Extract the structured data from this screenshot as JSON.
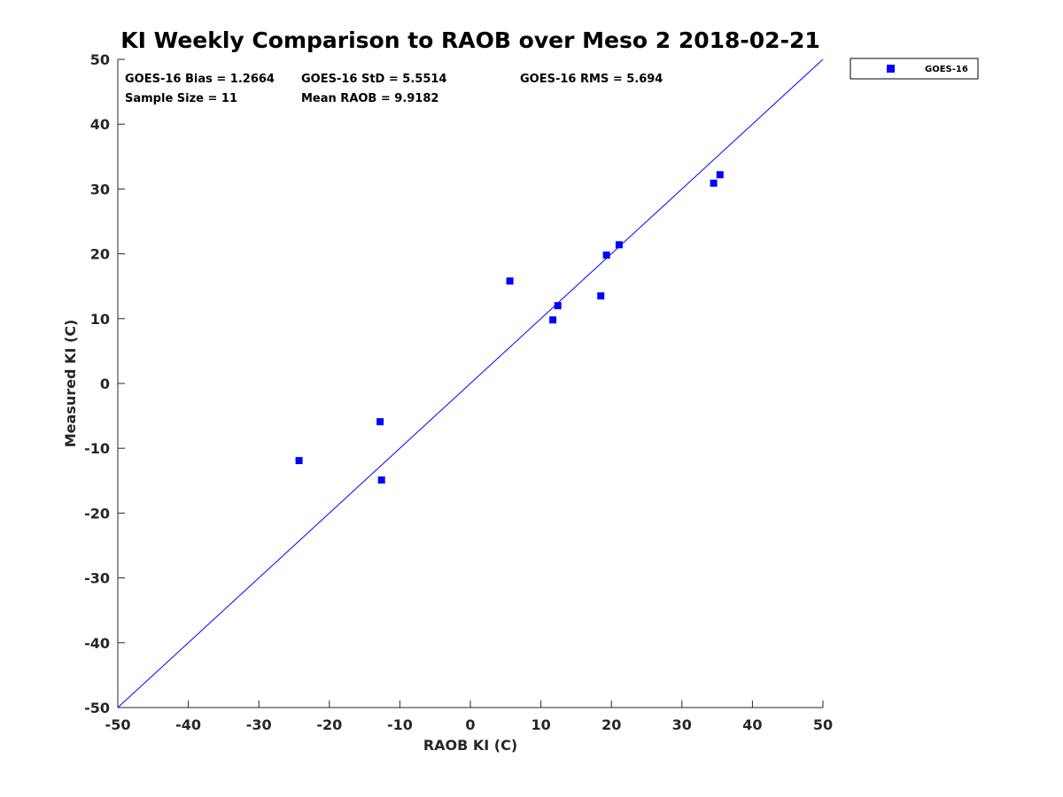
{
  "chart_data": {
    "type": "scatter",
    "title": "KI Weekly Comparison to RAOB over Meso 2 2018-02-21",
    "xlabel": "RAOB KI (C)",
    "ylabel": "Measured KI (C)",
    "xlim": [
      -50,
      50
    ],
    "ylim": [
      -50,
      50
    ],
    "xticks": [
      "-50",
      "-40",
      "-30",
      "-20",
      "-10",
      "0",
      "10",
      "20",
      "30",
      "40",
      "50"
    ],
    "yticks": [
      "50",
      "40",
      "30",
      "20",
      "10",
      "0",
      "-10",
      "-20",
      "-30",
      "-40",
      "-50"
    ],
    "xtick_values": [
      -50,
      -40,
      -30,
      -20,
      -10,
      0,
      10,
      20,
      30,
      40,
      50
    ],
    "ytick_values": [
      50,
      40,
      30,
      20,
      10,
      0,
      -10,
      -20,
      -30,
      -40,
      -50
    ],
    "grid": false,
    "reference_line": {
      "description": "1:1 line",
      "from": [
        -50,
        -50
      ],
      "to": [
        50,
        50
      ],
      "color": "#0000ff"
    },
    "series": [
      {
        "name": "GOES-16",
        "color": "#0000ff",
        "marker": "square",
        "x": [
          -24.3,
          -12.8,
          -12.6,
          5.6,
          11.7,
          12.4,
          18.5,
          19.3,
          21.1,
          34.5,
          35.4
        ],
        "y": [
          -11.9,
          -5.9,
          -14.9,
          15.8,
          9.8,
          12.0,
          13.5,
          19.8,
          21.4,
          30.9,
          32.2
        ]
      }
    ],
    "legend": {
      "placement": "outside-top-right",
      "entries": [
        "GOES-16"
      ]
    },
    "stats": {
      "bias": "GOES-16 Bias = 1.2664",
      "std": "GOES-16 StD = 5.5514",
      "rms": "GOES-16 RMS = 5.694",
      "sample_size": "Sample Size = 11",
      "mean_raob": "Mean RAOB = 9.9182"
    }
  }
}
